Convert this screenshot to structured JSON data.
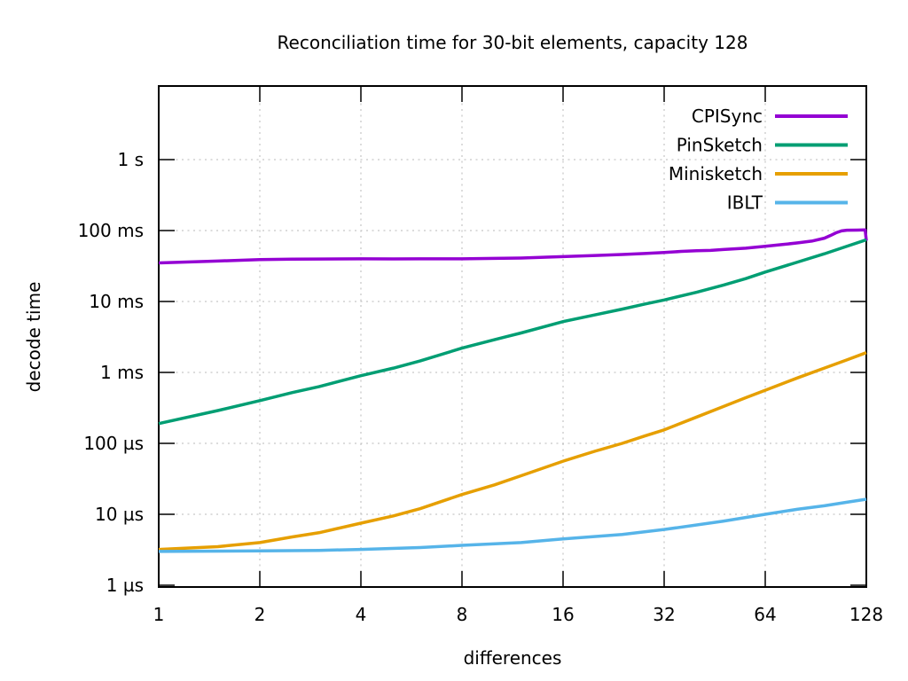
{
  "page": {
    "background": "#ffffff"
  },
  "chart_data": {
    "type": "line",
    "title": "Reconciliation time for 30-bit elements, capacity 128",
    "xlabel": "differences",
    "ylabel": "decode time",
    "x_scale": "log2",
    "y_scale": "log10",
    "x_range": [
      1,
      128
    ],
    "y_range_us": [
      1,
      11000000
    ],
    "grid": true,
    "legend_position": "top-right-inside",
    "axis_color": "#000000",
    "grid_color": "#b8b8b8",
    "x_ticks": [
      1,
      2,
      4,
      8,
      16,
      32,
      64,
      128
    ],
    "y_ticks": [
      {
        "us": 1,
        "label": "1 µs"
      },
      {
        "us": 10,
        "label": "10 µs"
      },
      {
        "us": 100,
        "label": "100 µs"
      },
      {
        "us": 1000,
        "label": "1 ms"
      },
      {
        "us": 10000,
        "label": "10 ms"
      },
      {
        "us": 100000,
        "label": "100 ms"
      },
      {
        "us": 1000000,
        "label": "1 s"
      }
    ],
    "series": [
      {
        "name": "CPISync",
        "color": "#9400d3",
        "points": [
          [
            1,
            35000
          ],
          [
            1.5,
            37200
          ],
          [
            2,
            39000
          ],
          [
            2.5,
            39500
          ],
          [
            3,
            39600
          ],
          [
            4,
            40000
          ],
          [
            5,
            39800
          ],
          [
            6,
            39900
          ],
          [
            8,
            40000
          ],
          [
            10,
            40500
          ],
          [
            12,
            41000
          ],
          [
            14,
            42000
          ],
          [
            16,
            43000
          ],
          [
            20,
            44500
          ],
          [
            24,
            46000
          ],
          [
            28,
            47500
          ],
          [
            32,
            49000
          ],
          [
            36,
            50800
          ],
          [
            40,
            52000
          ],
          [
            44,
            52600
          ],
          [
            48,
            54000
          ],
          [
            56,
            56500
          ],
          [
            64,
            60000
          ],
          [
            72,
            63500
          ],
          [
            80,
            67000
          ],
          [
            88,
            71000
          ],
          [
            96,
            78000
          ],
          [
            100,
            85000
          ],
          [
            104,
            93000
          ],
          [
            108,
            99000
          ],
          [
            112,
            101000
          ],
          [
            120,
            101500
          ],
          [
            127,
            102000
          ],
          [
            128,
            72000
          ]
        ]
      },
      {
        "name": "PinSketch",
        "color": "#009e73",
        "points": [
          [
            1,
            190
          ],
          [
            1.5,
            290
          ],
          [
            2,
            400
          ],
          [
            2.5,
            520
          ],
          [
            3,
            630
          ],
          [
            4,
            900
          ],
          [
            5,
            1150
          ],
          [
            6,
            1450
          ],
          [
            8,
            2200
          ],
          [
            10,
            2900
          ],
          [
            12,
            3600
          ],
          [
            16,
            5200
          ],
          [
            20,
            6500
          ],
          [
            24,
            7800
          ],
          [
            28,
            9200
          ],
          [
            32,
            10500
          ],
          [
            40,
            13500
          ],
          [
            48,
            17000
          ],
          [
            56,
            21000
          ],
          [
            64,
            26000
          ],
          [
            80,
            36000
          ],
          [
            96,
            47000
          ],
          [
            112,
            60000
          ],
          [
            128,
            74000
          ]
        ]
      },
      {
        "name": "Minisketch",
        "color": "#e69f00",
        "points": [
          [
            1,
            3.2
          ],
          [
            1.5,
            3.5
          ],
          [
            2,
            4.0
          ],
          [
            2.5,
            4.8
          ],
          [
            3,
            5.5
          ],
          [
            4,
            7.5
          ],
          [
            5,
            9.5
          ],
          [
            6,
            12
          ],
          [
            8,
            19
          ],
          [
            10,
            26
          ],
          [
            12,
            35
          ],
          [
            16,
            56
          ],
          [
            20,
            78
          ],
          [
            24,
            100
          ],
          [
            28,
            127
          ],
          [
            32,
            155
          ],
          [
            40,
            235
          ],
          [
            48,
            330
          ],
          [
            56,
            440
          ],
          [
            64,
            560
          ],
          [
            80,
            840
          ],
          [
            96,
            1150
          ],
          [
            112,
            1500
          ],
          [
            128,
            1900
          ]
        ]
      },
      {
        "name": "IBLT",
        "color": "#56b4e9",
        "points": [
          [
            1,
            3.0
          ],
          [
            2,
            3.05
          ],
          [
            3,
            3.1
          ],
          [
            4,
            3.2
          ],
          [
            6,
            3.4
          ],
          [
            8,
            3.65
          ],
          [
            12,
            4.0
          ],
          [
            16,
            4.5
          ],
          [
            24,
            5.2
          ],
          [
            32,
            6.1
          ],
          [
            48,
            8.0
          ],
          [
            64,
            10.0
          ],
          [
            80,
            11.8
          ],
          [
            96,
            13.2
          ],
          [
            112,
            14.8
          ],
          [
            128,
            16.3
          ]
        ]
      }
    ]
  }
}
